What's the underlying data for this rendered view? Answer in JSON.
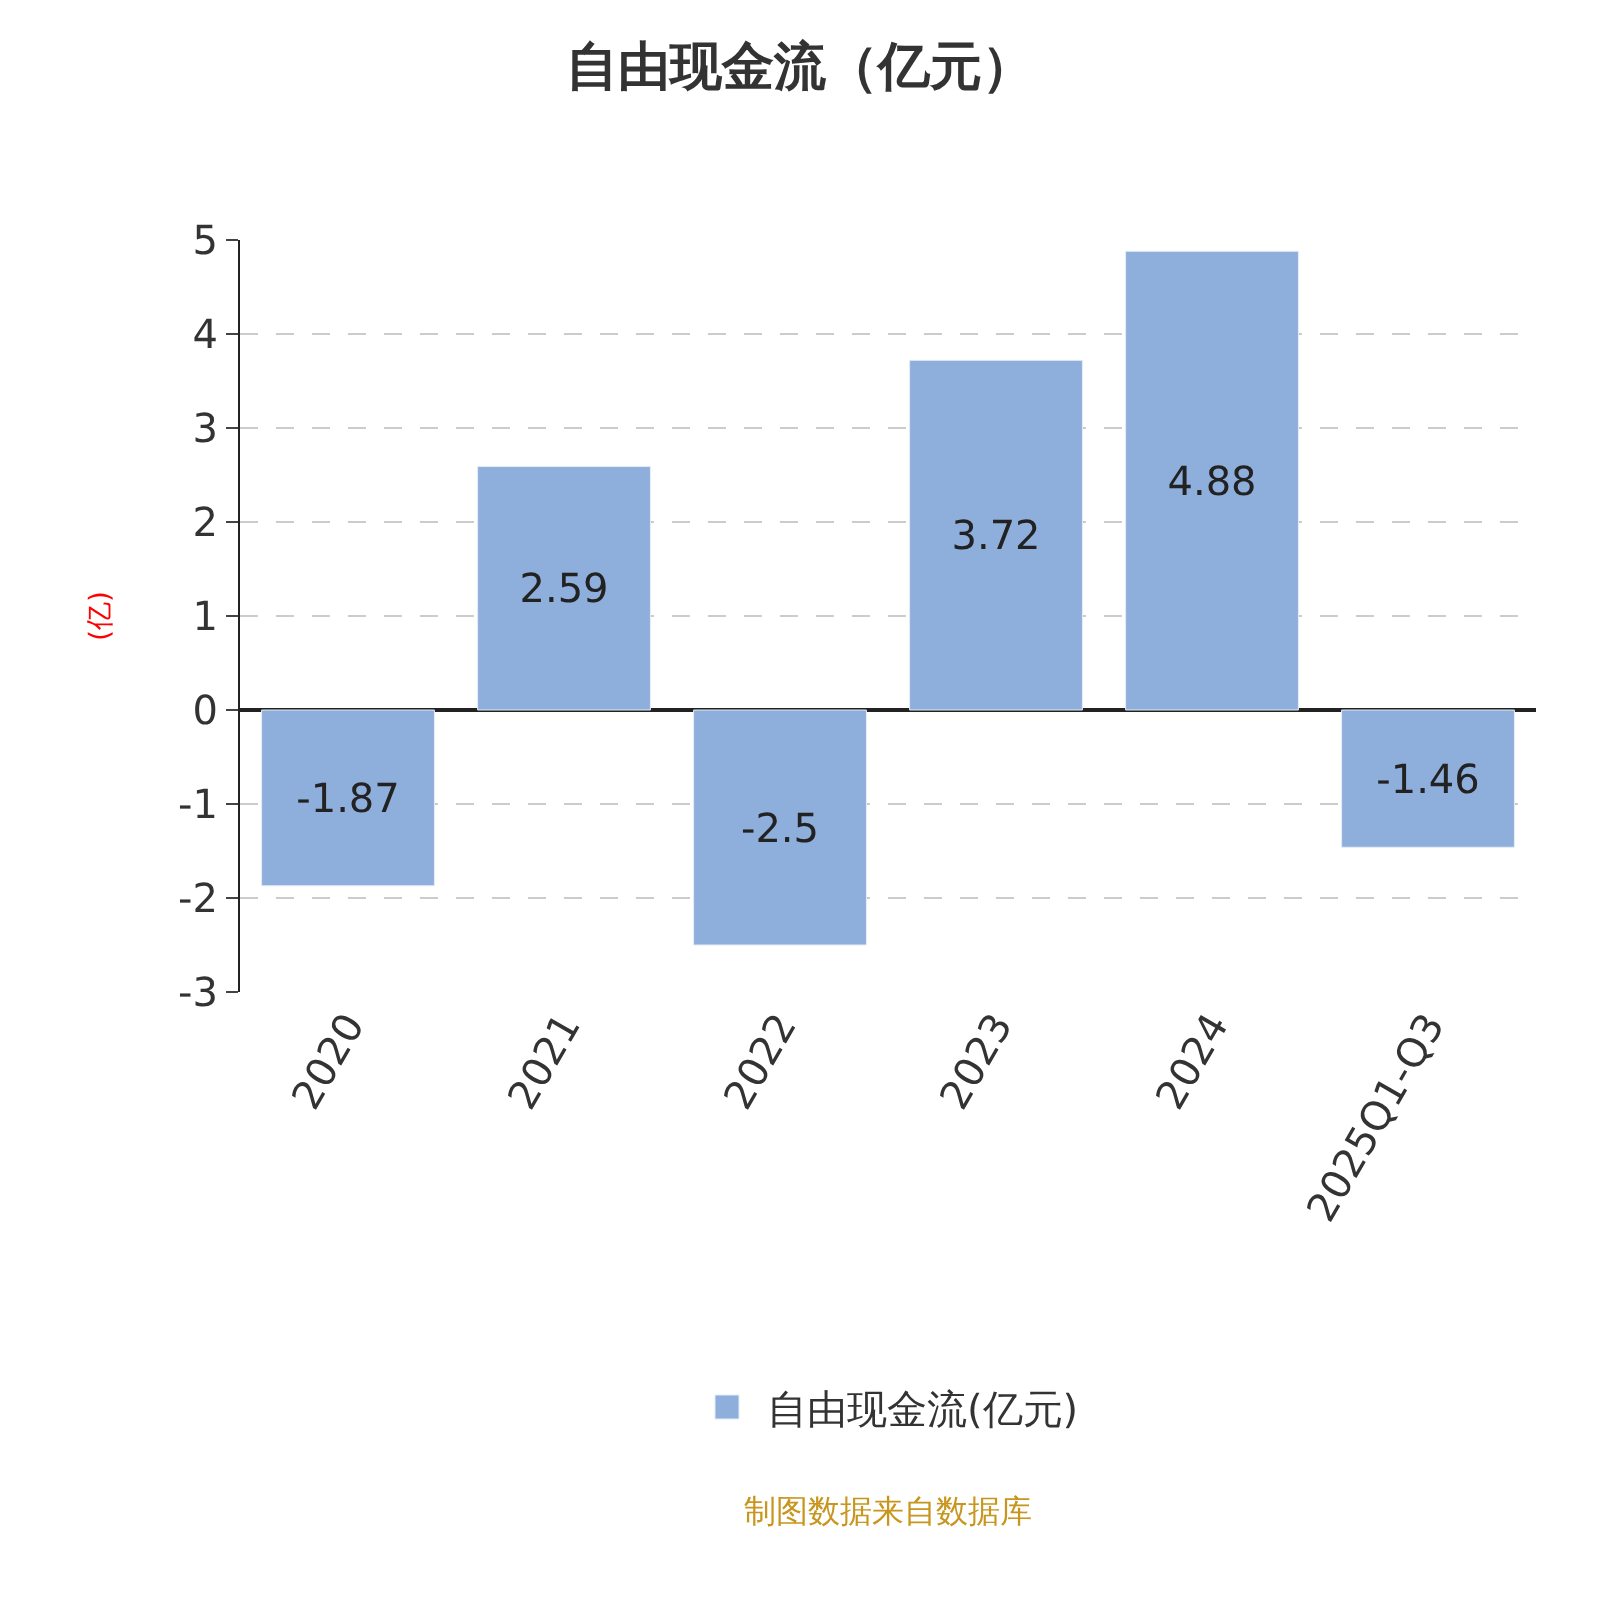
{
  "chart_data": {
    "type": "bar",
    "title": "自由现金流（亿元）",
    "ylabel": "(亿)",
    "categories": [
      "2020",
      "2021",
      "2022",
      "2023",
      "2024",
      "2025Q1-Q3"
    ],
    "series": [
      {
        "name": "自由现金流(亿元)",
        "color": "#8eaedb",
        "values": [
          -1.87,
          2.59,
          -2.5,
          3.72,
          4.88,
          -1.46
        ]
      }
    ],
    "ylim": [
      -3,
      5
    ],
    "yticks": [
      -3,
      -2,
      -1,
      0,
      1,
      2,
      3,
      4,
      5
    ],
    "grid": "y",
    "legend": "bottom",
    "data_labels": true,
    "annotations": [
      "制图数据来自数据库"
    ]
  }
}
